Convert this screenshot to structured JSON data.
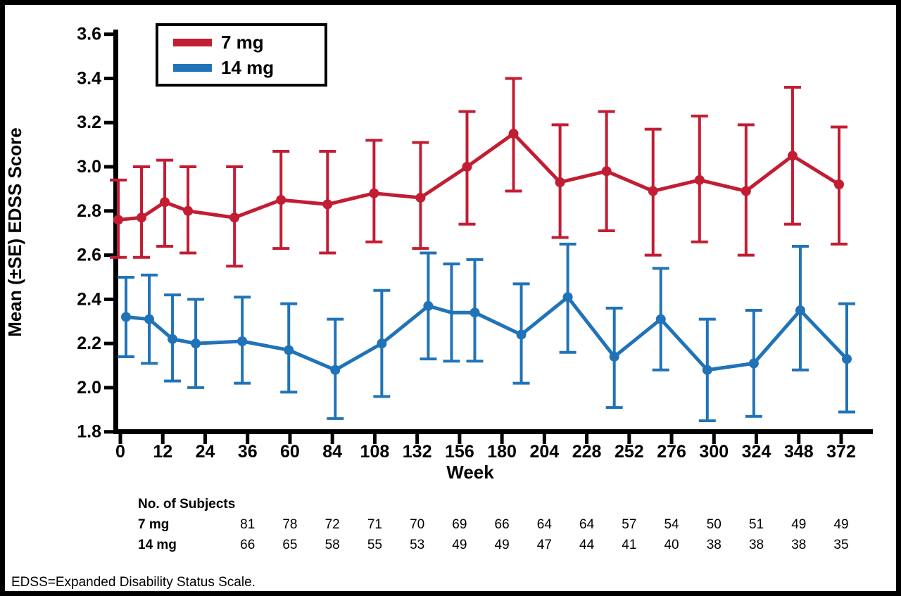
{
  "chart_data": {
    "type": "line",
    "title": "",
    "xlabel": "Week",
    "ylabel": "Mean (±SE) EDSS Score",
    "ylim": [
      1.8,
      3.6
    ],
    "yticks": [
      "3.6",
      "3.4",
      "3.2",
      "3.0",
      "2.8",
      "2.6",
      "2.4",
      "2.2",
      "2.0",
      "1.8"
    ],
    "xticks": [
      0,
      12,
      24,
      36,
      60,
      84,
      108,
      132,
      156,
      180,
      204,
      228,
      252,
      276,
      300,
      324,
      348,
      372
    ],
    "legend_position": "top-left-inside",
    "grid": false,
    "colors": {
      "red": "#C21D33",
      "blue": "#2173B8",
      "axis": "#000000",
      "background": "#FFFFFF"
    },
    "legend": [
      {
        "label": "7 mg",
        "color": "#C21D33"
      },
      {
        "label": "14 mg",
        "color": "#2173B8"
      }
    ],
    "series": [
      {
        "name": "7 mg",
        "color": "#C21D33",
        "points": [
          {
            "week": 0,
            "mean": 2.76,
            "lo": 2.59,
            "hi": 2.94
          },
          {
            "week": 12,
            "mean": 2.77,
            "lo": 2.59,
            "hi": 3.0
          },
          {
            "week": 24,
            "mean": 2.84,
            "lo": 2.64,
            "hi": 3.03
          },
          {
            "week": 36,
            "mean": 2.8,
            "lo": 2.61,
            "hi": 3.0
          },
          {
            "week": 60,
            "mean": 2.77,
            "lo": 2.55,
            "hi": 3.0
          },
          {
            "week": 84,
            "mean": 2.85,
            "lo": 2.63,
            "hi": 3.07
          },
          {
            "week": 108,
            "mean": 2.83,
            "lo": 2.61,
            "hi": 3.07
          },
          {
            "week": 132,
            "mean": 2.88,
            "lo": 2.66,
            "hi": 3.12
          },
          {
            "week": 156,
            "mean": 2.86,
            "lo": 2.63,
            "hi": 3.11
          },
          {
            "week": 180,
            "mean": 3.0,
            "lo": 2.74,
            "hi": 3.25
          },
          {
            "week": 204,
            "mean": 3.15,
            "lo": 2.89,
            "hi": 3.4
          },
          {
            "week": 228,
            "mean": 2.93,
            "lo": 2.68,
            "hi": 3.19
          },
          {
            "week": 252,
            "mean": 2.98,
            "lo": 2.71,
            "hi": 3.25
          },
          {
            "week": 276,
            "mean": 2.89,
            "lo": 2.6,
            "hi": 3.17
          },
          {
            "week": 300,
            "mean": 2.94,
            "lo": 2.66,
            "hi": 3.23
          },
          {
            "week": 324,
            "mean": 2.89,
            "lo": 2.6,
            "hi": 3.19
          },
          {
            "week": 348,
            "mean": 3.05,
            "lo": 2.74,
            "hi": 3.36
          },
          {
            "week": 372,
            "mean": 2.92,
            "lo": 2.65,
            "hi": 3.18
          }
        ]
      },
      {
        "name": "14 mg",
        "color": "#2173B8",
        "points": [
          {
            "week": 0,
            "mean": 2.32,
            "lo": 2.14,
            "hi": 2.5
          },
          {
            "week": 12,
            "mean": 2.31,
            "lo": 2.11,
            "hi": 2.51
          },
          {
            "week": 24,
            "mean": 2.22,
            "lo": 2.03,
            "hi": 2.42
          },
          {
            "week": 36,
            "mean": 2.2,
            "lo": 2.0,
            "hi": 2.4
          },
          {
            "week": 60,
            "mean": 2.21,
            "lo": 2.02,
            "hi": 2.41
          },
          {
            "week": 84,
            "mean": 2.17,
            "lo": 1.98,
            "hi": 2.38
          },
          {
            "week": 108,
            "mean": 2.08,
            "lo": 1.86,
            "hi": 2.31
          },
          {
            "week": 132,
            "mean": 2.2,
            "lo": 1.96,
            "hi": 2.44
          },
          {
            "week": 156,
            "mean": 2.37,
            "lo": 2.13,
            "hi": 2.61
          },
          {
            "week": 168,
            "mean": 2.34,
            "lo": 2.12,
            "hi": 2.56,
            "marker": false
          },
          {
            "week": 180,
            "mean": 2.34,
            "lo": 2.12,
            "hi": 2.58
          },
          {
            "week": 204,
            "mean": 2.24,
            "lo": 2.02,
            "hi": 2.47
          },
          {
            "week": 228,
            "mean": 2.41,
            "lo": 2.16,
            "hi": 2.65
          },
          {
            "week": 252,
            "mean": 2.14,
            "lo": 1.91,
            "hi": 2.36
          },
          {
            "week": 276,
            "mean": 2.31,
            "lo": 2.08,
            "hi": 2.54
          },
          {
            "week": 300,
            "mean": 2.08,
            "lo": 1.85,
            "hi": 2.31
          },
          {
            "week": 324,
            "mean": 2.11,
            "lo": 1.87,
            "hi": 2.35
          },
          {
            "week": 348,
            "mean": 2.35,
            "lo": 2.08,
            "hi": 2.64
          },
          {
            "week": 372,
            "mean": 2.13,
            "lo": 1.89,
            "hi": 2.38
          }
        ]
      }
    ],
    "subjects_table": {
      "header": "No. of Subjects",
      "weeks": [
        36,
        60,
        84,
        108,
        132,
        156,
        180,
        204,
        228,
        252,
        276,
        300,
        324,
        348,
        372
      ],
      "rows": [
        {
          "label": "7 mg",
          "values": [
            81,
            78,
            72,
            71,
            70,
            69,
            66,
            64,
            64,
            57,
            54,
            50,
            51,
            49,
            49
          ]
        },
        {
          "label": "14 mg",
          "values": [
            66,
            65,
            58,
            55,
            53,
            49,
            49,
            47,
            44,
            41,
            40,
            38,
            38,
            38,
            35
          ]
        }
      ]
    },
    "footnote": "EDSS=Expanded Disability Status Scale."
  }
}
